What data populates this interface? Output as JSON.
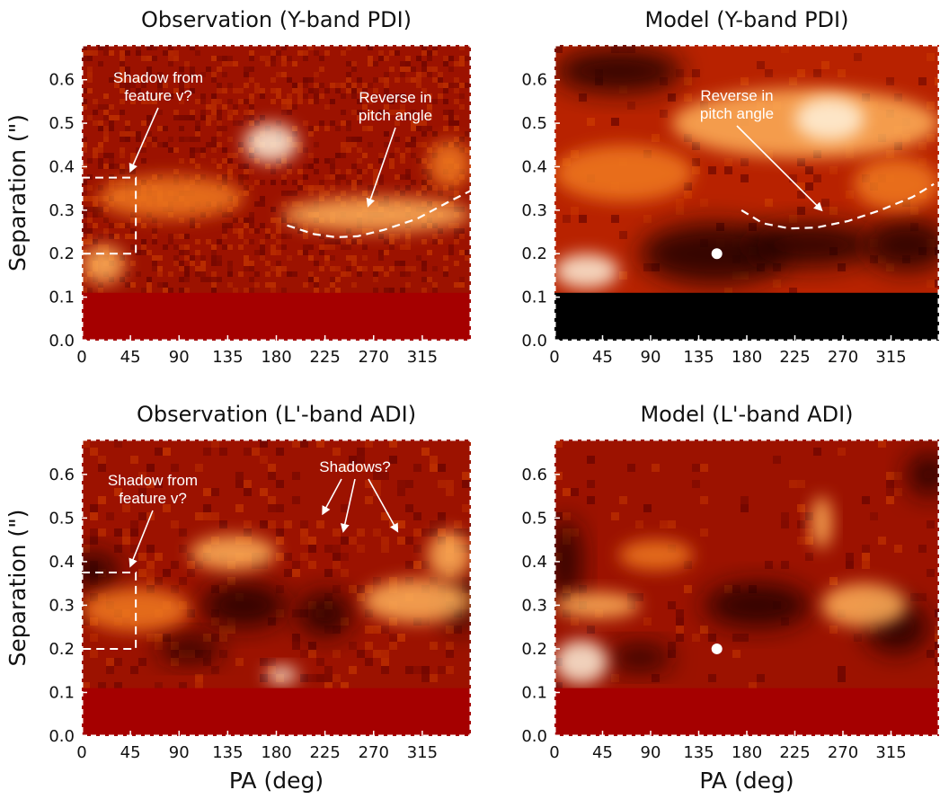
{
  "chart_data": [
    {
      "type": "heatmap",
      "title": "Observation (Y-band PDI)",
      "xlabel": "",
      "ylabel": "Separation (\")",
      "xlim": [
        0,
        360
      ],
      "ylim": [
        0,
        0.68
      ],
      "xticks": [
        "0",
        "45",
        "90",
        "135",
        "180",
        "225",
        "270",
        "315"
      ],
      "yticks": [
        "0.0",
        "0.1",
        "0.2",
        "0.3",
        "0.4",
        "0.5",
        "0.6"
      ],
      "colormap": "gist_heat",
      "masked_below": 0.11,
      "mask_color": "#a50000",
      "annotations": [
        {
          "text_lines": [
            "Shadow from",
            "feature v?"
          ],
          "arrow_to": [
            45,
            0.39
          ]
        },
        {
          "text_lines": [
            "Reverse in",
            "pitch angle"
          ],
          "arrow_to": [
            265,
            0.31
          ]
        }
      ],
      "dashed_box": {
        "x": [
          0,
          50
        ],
        "y": [
          0.2,
          0.375
        ]
      },
      "dashed_curve": [
        [
          190,
          0.265
        ],
        [
          215,
          0.245
        ],
        [
          235,
          0.238
        ],
        [
          255,
          0.24
        ],
        [
          280,
          0.255
        ],
        [
          310,
          0.28
        ],
        [
          340,
          0.32
        ],
        [
          360,
          0.345
        ]
      ],
      "bright_features": [
        {
          "x": [
            0,
            40
          ],
          "y": [
            0.13,
            0.22
          ],
          "level": 0.9
        },
        {
          "x": [
            15,
            150
          ],
          "y": [
            0.28,
            0.38
          ],
          "level": 0.7
        },
        {
          "x": [
            150,
            200
          ],
          "y": [
            0.41,
            0.5
          ],
          "level": 0.95
        },
        {
          "x": [
            185,
            360
          ],
          "y": [
            0.25,
            0.33
          ],
          "level": 0.8
        },
        {
          "x": [
            320,
            360
          ],
          "y": [
            0.35,
            0.46
          ],
          "level": 0.65
        }
      ]
    },
    {
      "type": "heatmap",
      "title": "Model (Y-band PDI)",
      "xlabel": "",
      "ylabel": "",
      "xlim": [
        0,
        360
      ],
      "ylim": [
        0,
        0.68
      ],
      "xticks": [
        "0",
        "45",
        "90",
        "135",
        "180",
        "225",
        "270",
        "315"
      ],
      "yticks": [
        "0.0",
        "0.1",
        "0.2",
        "0.3",
        "0.4",
        "0.5",
        "0.6"
      ],
      "colormap": "gist_heat",
      "masked_below": 0.11,
      "mask_color": "#000000",
      "annotations": [
        {
          "text_lines": [
            "Reverse in",
            "pitch angle"
          ],
          "arrow_to": [
            250,
            0.3
          ]
        }
      ],
      "marker": {
        "x": 152,
        "y": 0.2
      },
      "dashed_curve": [
        [
          175,
          0.3
        ],
        [
          195,
          0.27
        ],
        [
          220,
          0.258
        ],
        [
          245,
          0.26
        ],
        [
          275,
          0.275
        ],
        [
          305,
          0.3
        ],
        [
          335,
          0.33
        ],
        [
          355,
          0.36
        ]
      ],
      "bright_features": [
        {
          "x": [
            0,
            60
          ],
          "y": [
            0.12,
            0.2
          ],
          "level": 0.95
        },
        {
          "x": [
            0,
            130
          ],
          "y": [
            0.32,
            0.45
          ],
          "level": 0.75
        },
        {
          "x": [
            110,
            360
          ],
          "y": [
            0.42,
            0.58
          ],
          "level": 0.85
        },
        {
          "x": [
            225,
            290
          ],
          "y": [
            0.46,
            0.56
          ],
          "level": 1.0
        },
        {
          "x": [
            280,
            360
          ],
          "y": [
            0.3,
            0.42
          ],
          "level": 0.7
        }
      ]
    },
    {
      "type": "heatmap",
      "title": "Observation (L'-band ADI)",
      "xlabel": "PA (deg)",
      "ylabel": "Separation (\")",
      "xlim": [
        0,
        360
      ],
      "ylim": [
        0,
        0.68
      ],
      "xticks": [
        "0",
        "45",
        "90",
        "135",
        "180",
        "225",
        "270",
        "315"
      ],
      "yticks": [
        "0.0",
        "0.1",
        "0.2",
        "0.3",
        "0.4",
        "0.5",
        "0.6"
      ],
      "colormap": "gist_heat",
      "masked_below": 0.11,
      "mask_color": "#a50000",
      "annotations": [
        {
          "text_lines": [
            "Shadow from",
            "feature v?"
          ],
          "arrow_to": [
            45,
            0.39
          ]
        },
        {
          "text_lines": [
            "Shadows?"
          ],
          "arrows_to": [
            [
              223,
              0.51
            ],
            [
              242,
              0.47
            ],
            [
              292,
              0.47
            ]
          ]
        }
      ],
      "dashed_box": {
        "x": [
          0,
          50
        ],
        "y": [
          0.2,
          0.375
        ]
      },
      "bright_features": [
        {
          "x": [
            0,
            100
          ],
          "y": [
            0.24,
            0.34
          ],
          "level": 0.75
        },
        {
          "x": [
            100,
            180
          ],
          "y": [
            0.38,
            0.46
          ],
          "level": 0.8
        },
        {
          "x": [
            260,
            360
          ],
          "y": [
            0.26,
            0.36
          ],
          "level": 0.85
        },
        {
          "x": [
            320,
            360
          ],
          "y": [
            0.36,
            0.47
          ],
          "level": 0.9
        },
        {
          "x": [
            170,
            200
          ],
          "y": [
            0.12,
            0.16
          ],
          "level": 1.0
        }
      ]
    },
    {
      "type": "heatmap",
      "title": "Model (L'-band ADI)",
      "xlabel": "PA (deg)",
      "ylabel": "",
      "xlim": [
        0,
        360
      ],
      "ylim": [
        0,
        0.68
      ],
      "xticks": [
        "0",
        "45",
        "90",
        "135",
        "180",
        "225",
        "270",
        "315"
      ],
      "yticks": [
        "0.0",
        "0.1",
        "0.2",
        "0.3",
        "0.4",
        "0.5",
        "0.6"
      ],
      "colormap": "gist_heat",
      "masked_below": 0.11,
      "mask_color": "#a50000",
      "marker": {
        "x": 152,
        "y": 0.2
      },
      "bright_features": [
        {
          "x": [
            0,
            50
          ],
          "y": [
            0.12,
            0.22
          ],
          "level": 0.95
        },
        {
          "x": [
            0,
            80
          ],
          "y": [
            0.27,
            0.33
          ],
          "level": 0.8
        },
        {
          "x": [
            60,
            130
          ],
          "y": [
            0.38,
            0.45
          ],
          "level": 0.6
        },
        {
          "x": [
            250,
            330
          ],
          "y": [
            0.25,
            0.35
          ],
          "level": 0.9
        },
        {
          "x": [
            240,
            260
          ],
          "y": [
            0.43,
            0.55
          ],
          "level": 0.8
        }
      ]
    }
  ]
}
